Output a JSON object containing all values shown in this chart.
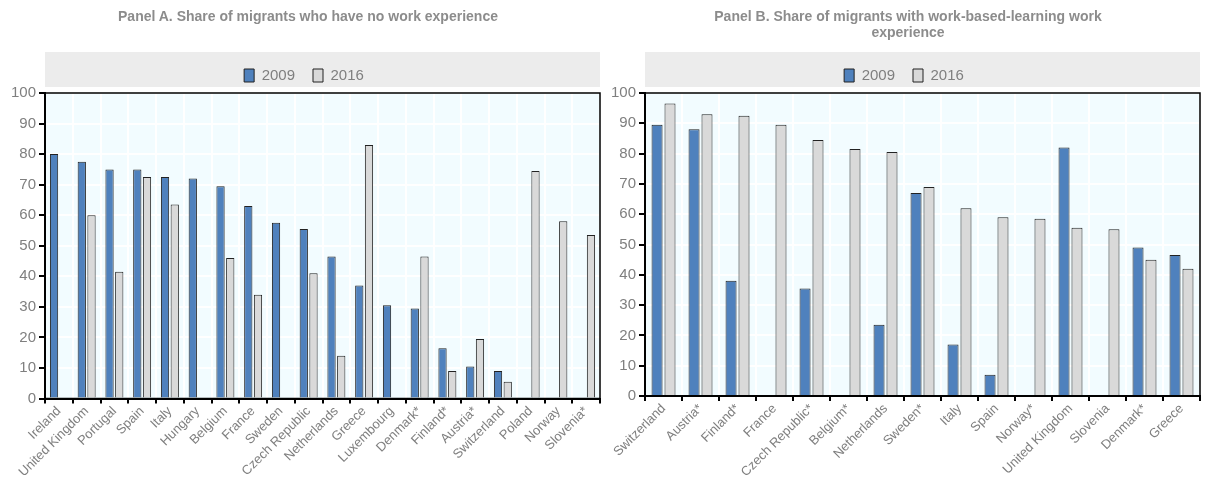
{
  "chart_data": [
    {
      "type": "bar",
      "title": "Panel A. Share of migrants who have no work experience",
      "categories": [
        "Ireland",
        "United Kingdom",
        "Portugal",
        "Spain",
        "Italy",
        "Hungary",
        "Belgium",
        "France",
        "Sweden",
        "Czech Republic",
        "Netherlands",
        "Greece",
        "Luxembourg",
        "Denmark*",
        "Finland*",
        "Austria*",
        "Switzerland",
        "Poland",
        "Norway",
        "Slovenia*"
      ],
      "series": [
        {
          "name": "2009",
          "color": "#4f81bd",
          "values": [
            80,
            77.5,
            75,
            75,
            72.5,
            72,
            69.5,
            63,
            57.5,
            55.5,
            46.5,
            37,
            30.5,
            29.5,
            16.5,
            10.5,
            9,
            null,
            null,
            null
          ]
        },
        {
          "name": "2016",
          "color": "#d9d9d9",
          "values": [
            null,
            60,
            41.5,
            72.5,
            63.5,
            null,
            46,
            34,
            null,
            41,
            14,
            83,
            null,
            46.5,
            9,
            19.5,
            5.5,
            74.5,
            58,
            53.5
          ]
        }
      ],
      "ylim": [
        0,
        100
      ],
      "yticks": [
        0,
        10,
        20,
        30,
        40,
        50,
        60,
        70,
        80,
        90,
        100
      ],
      "grid": true,
      "legend": "top"
    },
    {
      "type": "bar",
      "title": "Panel B. Share of migrants with work-based-learning work experience",
      "categories": [
        "Switzerland",
        "Austria*",
        "Finland*",
        "France",
        "Czech Republic*",
        "Belgium*",
        "Netherlands",
        "Sweden*",
        "Italy",
        "Spain",
        "Norway*",
        "United Kingdom",
        "Slovenia",
        "Denmark*",
        "Greece"
      ],
      "series": [
        {
          "name": "2009",
          "color": "#4f81bd",
          "values": [
            89.5,
            88,
            38,
            null,
            35.5,
            null,
            23.5,
            67,
            17,
            7,
            null,
            82,
            null,
            49,
            46.5
          ]
        },
        {
          "name": "2016",
          "color": "#d9d9d9",
          "values": [
            96.5,
            93,
            92.5,
            89.5,
            84.5,
            81.5,
            80.5,
            69,
            62,
            59,
            58.5,
            55.5,
            55,
            45,
            42
          ]
        }
      ],
      "ylim": [
        0,
        100
      ],
      "yticks": [
        0,
        10,
        20,
        30,
        40,
        50,
        60,
        70,
        80,
        90,
        100
      ],
      "grid": true,
      "legend": "top"
    }
  ]
}
